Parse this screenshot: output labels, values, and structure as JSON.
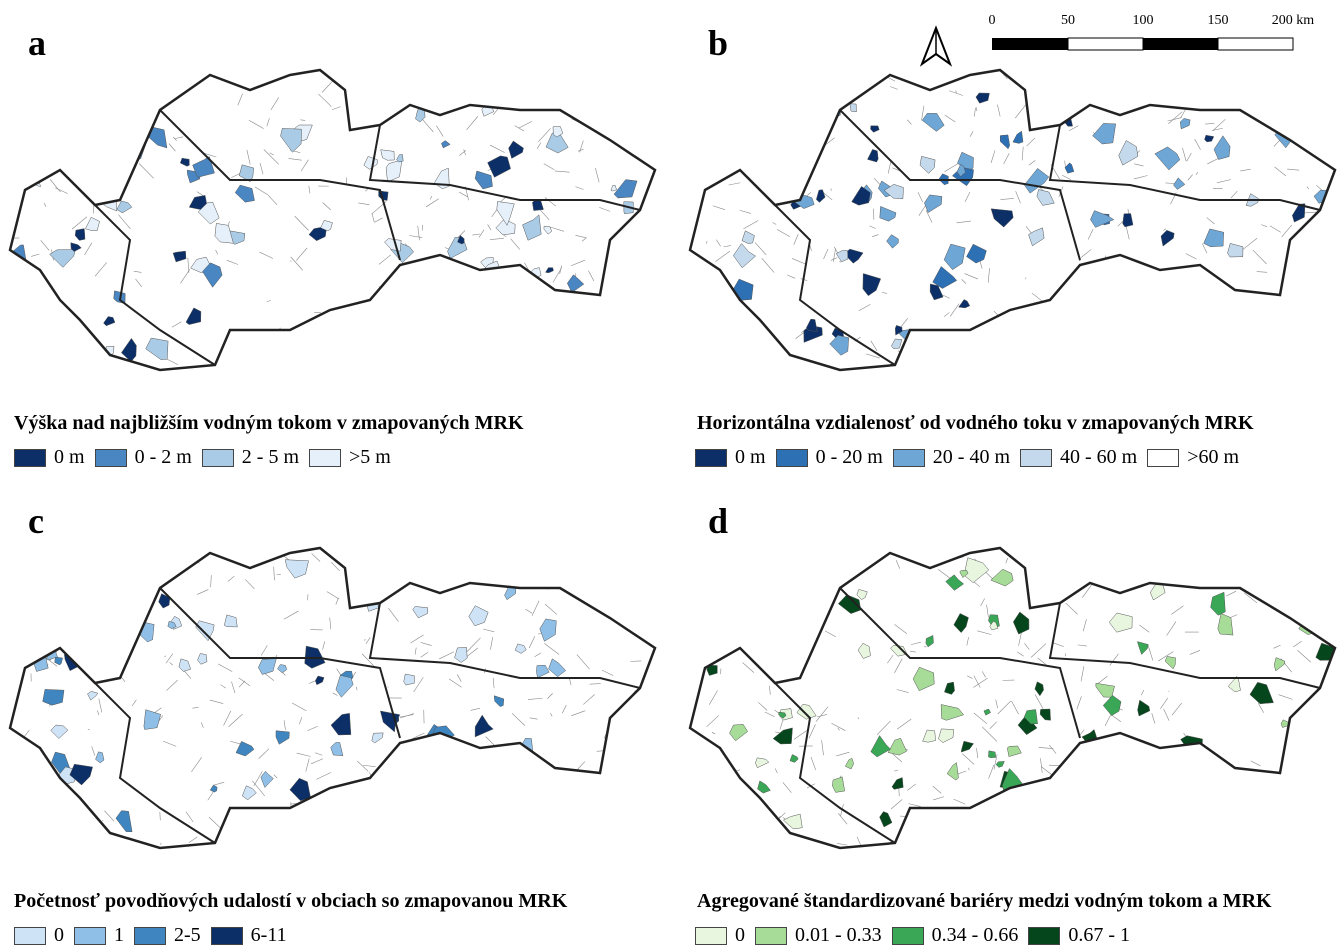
{
  "scale_bar": {
    "labels": [
      "0",
      "50",
      "100",
      "150",
      "200 km"
    ]
  },
  "panels": [
    {
      "letter": "a",
      "title": "Výška nad najbližším vodným tokom v zmapovaných MRK",
      "legend": [
        {
          "label": "0 m",
          "color": "#0b2f66"
        },
        {
          "label": "0 - 2 m",
          "color": "#4a86c2"
        },
        {
          "label": "2 - 5 m",
          "color": "#a9cbe6"
        },
        {
          "label": ">5 m",
          "color": "#e6f0fa"
        }
      ]
    },
    {
      "letter": "b",
      "title": "Horizontálna vzdialenosť od vodného toku v zmapovaných MRK",
      "legend": [
        {
          "label": "0 m",
          "color": "#0b2f66"
        },
        {
          "label": "0 - 20 m",
          "color": "#2e70b4"
        },
        {
          "label": "20 - 40 m",
          "color": "#6ea6d6"
        },
        {
          "label": "40 - 60 m",
          "color": "#c4d9ec"
        },
        {
          "label": ">60 m",
          "color": "#ffffff"
        }
      ]
    },
    {
      "letter": "c",
      "title": "Početnosť povodňových udalostí v obciach so zmapovanou MRK",
      "legend": [
        {
          "label": "0",
          "color": "#cfe3f6"
        },
        {
          "label": "1",
          "color": "#8fbfe6"
        },
        {
          "label": "2-5",
          "color": "#3f86c0"
        },
        {
          "label": "6-11",
          "color": "#0b2f66"
        }
      ]
    },
    {
      "letter": "d",
      "title": "Agregované štandardizované bariéry medzi vodným tokom a MRK",
      "legend": [
        {
          "label": "0",
          "color": "#e8f6e0"
        },
        {
          "label": "0.01 - 0.33",
          "color": "#a6dc98"
        },
        {
          "label": "0.34 - 0.66",
          "color": "#3aa757"
        },
        {
          "label": "0.67 - 1",
          "color": "#06461c"
        }
      ]
    }
  ]
}
